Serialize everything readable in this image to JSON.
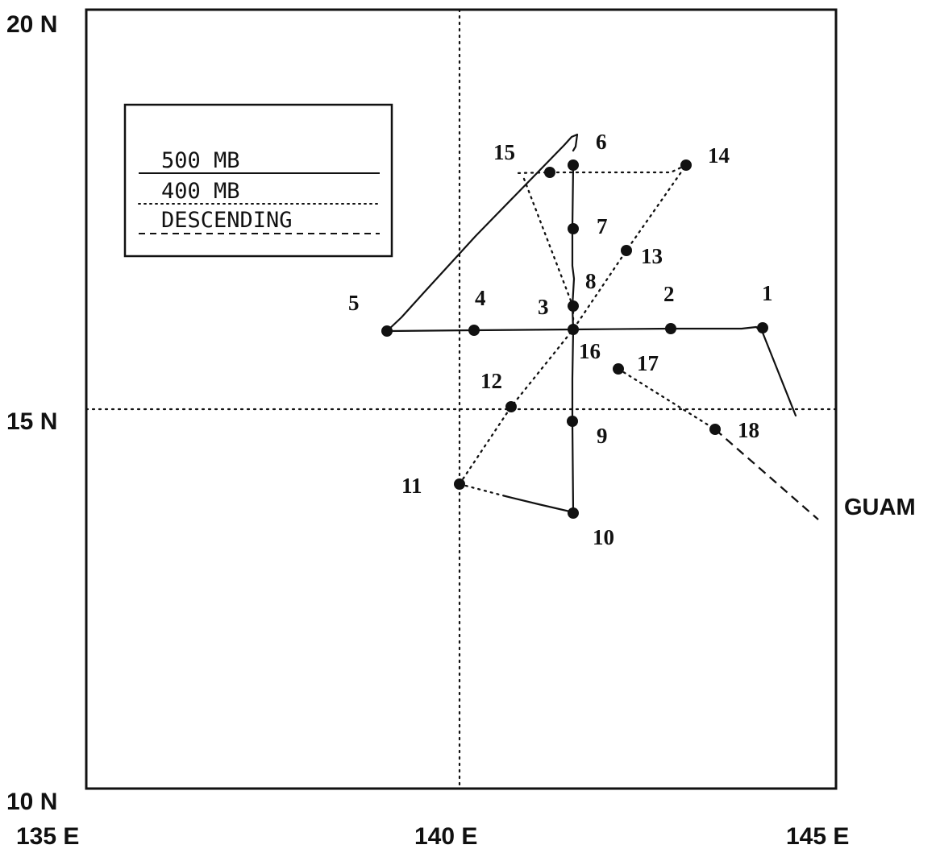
{
  "map": {
    "lat_labels": [
      "20 N",
      "15 N",
      "10 N"
    ],
    "lon_labels": [
      "135 E",
      "140 E",
      "145 E"
    ],
    "place_label": "GUAM",
    "legend": [
      {
        "label": "500 MB",
        "style": "solid"
      },
      {
        "label": "400 MB",
        "style": "dotted"
      },
      {
        "label": "DESCENDING",
        "style": "dashed"
      }
    ],
    "points": [
      {
        "id": "1",
        "lon": 144.1,
        "lat": 16.0
      },
      {
        "id": "2",
        "lon": 142.8,
        "lat": 16.0
      },
      {
        "id": "3",
        "lon": 141.5,
        "lat": 16.3
      },
      {
        "id": "4",
        "lon": 140.2,
        "lat": 16.0
      },
      {
        "id": "5",
        "lon": 139.0,
        "lat": 16.0
      },
      {
        "id": "6",
        "lon": 141.5,
        "lat": 18.1
      },
      {
        "id": "7",
        "lon": 141.5,
        "lat": 17.3
      },
      {
        "id": "8",
        "lon": 141.5,
        "lat": 16.3
      },
      {
        "id": "9",
        "lon": 141.5,
        "lat": 14.9
      },
      {
        "id": "10",
        "lon": 141.5,
        "lat": 13.8
      },
      {
        "id": "11",
        "lon": 140.0,
        "lat": 14.1
      },
      {
        "id": "12",
        "lon": 140.7,
        "lat": 15.0
      },
      {
        "id": "13",
        "lon": 142.2,
        "lat": 17.0
      },
      {
        "id": "14",
        "lon": 143.1,
        "lat": 18.1
      },
      {
        "id": "15",
        "lon": 141.2,
        "lat": 18.0
      },
      {
        "id": "16",
        "lon": 141.5,
        "lat": 16.0
      },
      {
        "id": "17",
        "lon": 142.1,
        "lat": 15.5
      },
      {
        "id": "18",
        "lon": 143.4,
        "lat": 14.7
      }
    ],
    "colors": {
      "ink": "#111111",
      "background": "#ffffff"
    }
  }
}
